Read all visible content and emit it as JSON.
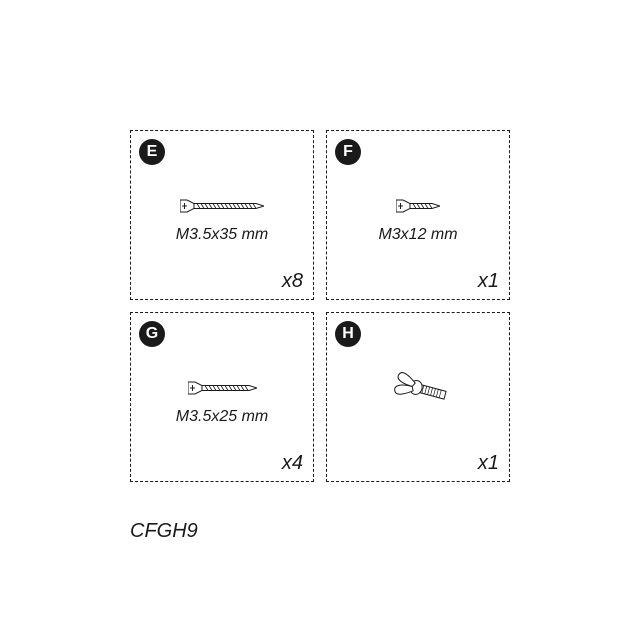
{
  "footer": "CFGH9",
  "cells": [
    {
      "letter": "E",
      "spec": "M3.5x35 mm",
      "qty": "x8",
      "icon": "screw-long",
      "screw_len": 70
    },
    {
      "letter": "F",
      "spec": "M3x12 mm",
      "qty": "x1",
      "icon": "screw-short",
      "screw_len": 30
    },
    {
      "letter": "G",
      "spec": "M3.5x25 mm",
      "qty": "x4",
      "icon": "screw-mid",
      "screw_len": 55
    },
    {
      "letter": "H",
      "spec": "",
      "qty": "x1",
      "icon": "wingnut",
      "screw_len": 0
    }
  ],
  "colors": {
    "stroke": "#1a1a1a",
    "fill": "#ffffff"
  }
}
